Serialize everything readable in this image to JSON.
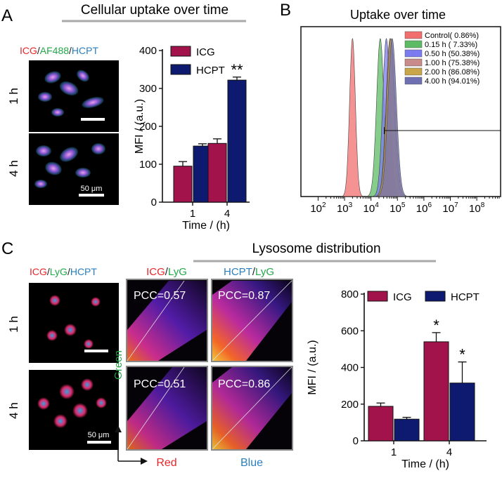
{
  "panels": {
    "a": {
      "letter": "A",
      "title": "Cellular uptake over time",
      "stain": {
        "p1": "ICG",
        "sep1": "/",
        "p2": "AF488",
        "sep2": "/",
        "p3": "HCPT"
      },
      "row_labels": [
        "1 h",
        "4 h"
      ],
      "scale_bar": "50 μm"
    },
    "b": {
      "letter": "B",
      "title": "Uptake over time",
      "x_ticks": [
        {
          "base": "10",
          "exp": "2"
        },
        {
          "base": "10",
          "exp": "3"
        },
        {
          "base": "10",
          "exp": "4"
        },
        {
          "base": "10",
          "exp": "5"
        },
        {
          "base": "10",
          "exp": "6"
        },
        {
          "base": "10",
          "exp": "7"
        },
        {
          "base": "10",
          "exp": "8"
        }
      ],
      "legend": [
        {
          "label": "Control( 0.86%)",
          "color": "#f26d6d"
        },
        {
          "label": "0.15 h (  7.33%)",
          "color": "#5dbb63"
        },
        {
          "label": "0.50 h (50.38%)",
          "color": "#7b7bef"
        },
        {
          "label": "1.00 h (75.38%)",
          "color": "#c98a8a"
        },
        {
          "label": "2.00 h (86.08%)",
          "color": "#c9a64a"
        },
        {
          "label": "4.00 h (94.01%)",
          "color": "#6f6fb3"
        }
      ]
    },
    "c": {
      "letter": "C",
      "title": "Lysosome distribution",
      "stain": {
        "p1": "ICG",
        "sep1": "/",
        "p2": "LyG",
        "sep2": "/",
        "p3": "HCPT"
      },
      "row_labels": [
        "1 h",
        "4 h"
      ],
      "scale_bar": "50 μm",
      "coloc_head1": {
        "p1": "ICG",
        "sep": "/",
        "p2": "LyG"
      },
      "coloc_head2": {
        "p1": "HCPT",
        "sep": "/",
        "p2": "LyG"
      },
      "pcc": [
        "PCC=0.57",
        "PCC=0.87",
        "PCC=0.51",
        "PCC=0.86"
      ],
      "axis_green": "Green",
      "axis_red": "Red",
      "axis_blue": "Blue"
    }
  },
  "colors": {
    "icg": "#a3134b",
    "hcpt": "#0d1a70",
    "stain_red": "#e8262b",
    "stain_green": "#23a84a",
    "stain_blue": "#2a7fbf"
  },
  "chart_data": [
    {
      "id": "A-bar",
      "type": "bar",
      "categories": [
        "1",
        "4"
      ],
      "series": [
        {
          "name": "ICG",
          "values": [
            95,
            155
          ],
          "errors": [
            12,
            12
          ]
        },
        {
          "name": "HCPT",
          "values": [
            148,
            322
          ],
          "errors": [
            6,
            8
          ]
        }
      ],
      "significance": [
        {
          "category": "4",
          "series": "HCPT",
          "mark": "**"
        }
      ],
      "xlabel": "Time / (h)",
      "ylabel": "MFI / (a.u.)",
      "ylim": [
        0,
        400
      ],
      "yticks": [
        0,
        100,
        200,
        300,
        400
      ],
      "legend": "top-left"
    },
    {
      "id": "B-histogram",
      "type": "area",
      "title": "Uptake over time",
      "x_scale": "log",
      "xlim_log10": [
        1.35,
        8.9
      ],
      "series": [
        {
          "name": "Control( 0.86%)",
          "peak_log10": 3.3,
          "width_log10": 0.11
        },
        {
          "name": "0.15 h (  7.33%)",
          "peak_log10": 4.35,
          "width_log10": 0.14
        },
        {
          "name": "0.50 h (50.38%)",
          "peak_log10": 4.58,
          "width_log10": 0.14
        },
        {
          "name": "1.00 h (75.38%)",
          "peak_log10": 4.72,
          "width_log10": 0.15
        },
        {
          "name": "2.00 h (86.08%)",
          "peak_log10": 4.75,
          "width_log10": 0.16
        },
        {
          "name": "4.00 h (94.01%)",
          "peak_log10": 4.8,
          "width_log10": 0.16
        }
      ],
      "gate_start_log10": 4.5
    },
    {
      "id": "C-bar",
      "type": "bar",
      "categories": [
        "1",
        "4"
      ],
      "series": [
        {
          "name": "ICG",
          "values": [
            188,
            540
          ],
          "errors": [
            18,
            50
          ]
        },
        {
          "name": "HCPT",
          "values": [
            118,
            315
          ],
          "errors": [
            10,
            115
          ]
        }
      ],
      "significance": [
        {
          "category": "4",
          "series": "ICG",
          "mark": "*"
        },
        {
          "category": "4",
          "series": "HCPT",
          "mark": "*"
        }
      ],
      "xlabel": "Time / (h)",
      "ylabel": "MFI / (a.u.)",
      "ylim": [
        0,
        800
      ],
      "yticks": [
        0,
        200,
        400,
        600,
        800
      ],
      "legend": "top"
    }
  ]
}
